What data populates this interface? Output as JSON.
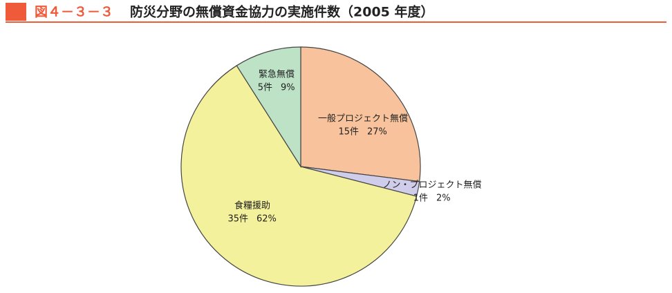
{
  "figure_number": "図４－３－３",
  "chart_data": {
    "type": "pie",
    "title": "防災分野の無償資金協力の実施件数（2005 年度）",
    "categories": [
      "一般プロジェクト無償",
      "ノン・プロジェクト無償",
      "食糧援助",
      "緊急無償"
    ],
    "values": [
      27,
      2,
      62,
      9
    ],
    "value_labels": [
      "27%",
      "2%",
      "62%",
      "9%"
    ],
    "counts": [
      15,
      1,
      35,
      5
    ],
    "count_labels": [
      "15件",
      "1件",
      "35件",
      "5件"
    ],
    "colors": [
      "#f8c39c",
      "#cfcdea",
      "#f3f19b",
      "#bde2c6"
    ]
  }
}
